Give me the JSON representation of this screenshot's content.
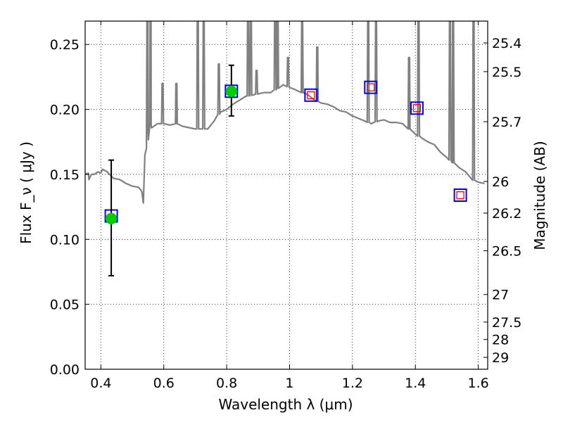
{
  "chart_data": {
    "type": "line",
    "xlabel": "Wavelength  λ (μm)",
    "ylabel": "Flux  F_ν  ( μJy )",
    "y2label": "Magnitude (AB)",
    "xlim": [
      0.35,
      1.63
    ],
    "ylim": [
      0.0,
      0.268
    ],
    "grid": true,
    "x_ticks": [
      0.4,
      0.6,
      0.8,
      1.0,
      1.2,
      1.4,
      1.6
    ],
    "x_tick_labels": [
      "0.4",
      "0.6",
      "0.8",
      "1",
      "1.2",
      "1.4",
      "1.6"
    ],
    "y_ticks": [
      0.0,
      0.05,
      0.1,
      0.15,
      0.2,
      0.25
    ],
    "y_tick_labels": [
      "0.00",
      "0.05",
      "0.10",
      "0.15",
      "0.20",
      "0.25"
    ],
    "mag_ticks": [
      25.4,
      25.5,
      25.7,
      26,
      26.2,
      26.5,
      27,
      27.5,
      28,
      29
    ],
    "mag_tick_labels": [
      "25.4",
      "25.5",
      "25.7",
      "26",
      "26.2",
      "26.5",
      "27",
      "27.5",
      "28",
      "29"
    ],
    "colors": {
      "sed": "#808080",
      "observed": "#00cc00",
      "model_outer": "#0000ff",
      "model_inner": "#ff0000",
      "errorbar": "#000000"
    },
    "series": [
      {
        "kind": "sed-line",
        "x": [
          0.35,
          0.36,
          0.362,
          0.37,
          0.38,
          0.39,
          0.4,
          0.405,
          0.42,
          0.44,
          0.46,
          0.48,
          0.5,
          0.52,
          0.53,
          0.535,
          0.54,
          0.545,
          0.55,
          0.56,
          0.58,
          0.6,
          0.62,
          0.64,
          0.66,
          0.68,
          0.7,
          0.72,
          0.74,
          0.76,
          0.78,
          0.8,
          0.82,
          0.84,
          0.86,
          0.88,
          0.9,
          0.92,
          0.94,
          0.96,
          0.98,
          1.0,
          1.02,
          1.04,
          1.06,
          1.08,
          1.1,
          1.12,
          1.14,
          1.16,
          1.18,
          1.2,
          1.22,
          1.24,
          1.26,
          1.28,
          1.3,
          1.32,
          1.34,
          1.36,
          1.38,
          1.4,
          1.42,
          1.44,
          1.46,
          1.48,
          1.5,
          1.52,
          1.54,
          1.56,
          1.58,
          1.6,
          1.62
        ],
        "y": [
          0.15,
          0.151,
          0.146,
          0.15,
          0.15,
          0.152,
          0.151,
          0.154,
          0.152,
          0.147,
          0.146,
          0.143,
          0.141,
          0.14,
          0.137,
          0.128,
          0.165,
          0.17,
          0.181,
          0.187,
          0.189,
          0.189,
          0.188,
          0.189,
          0.187,
          0.186,
          0.185,
          0.185,
          0.185,
          0.191,
          0.198,
          0.2,
          0.204,
          0.207,
          0.21,
          0.211,
          0.212,
          0.213,
          0.213,
          0.216,
          0.219,
          0.217,
          0.215,
          0.213,
          0.211,
          0.207,
          0.205,
          0.204,
          0.202,
          0.199,
          0.198,
          0.195,
          0.193,
          0.191,
          0.189,
          0.191,
          0.192,
          0.19,
          0.19,
          0.189,
          0.185,
          0.181,
          0.178,
          0.175,
          0.173,
          0.167,
          0.163,
          0.159,
          0.155,
          0.152,
          0.146,
          0.144,
          0.143
        ]
      },
      {
        "kind": "emission-lines",
        "lines": [
          {
            "x": 0.548,
            "peak": 0.268
          },
          {
            "x": 0.558,
            "peak": 0.268
          },
          {
            "x": 0.596,
            "peak": 0.22
          },
          {
            "x": 0.64,
            "peak": 0.22
          },
          {
            "x": 0.708,
            "peak": 0.268
          },
          {
            "x": 0.727,
            "peak": 0.268
          },
          {
            "x": 0.775,
            "peak": 0.235
          },
          {
            "x": 0.868,
            "peak": 0.268
          },
          {
            "x": 0.877,
            "peak": 0.268
          },
          {
            "x": 0.895,
            "peak": 0.23
          },
          {
            "x": 0.954,
            "peak": 0.268
          },
          {
            "x": 0.962,
            "peak": 0.268
          },
          {
            "x": 0.995,
            "peak": 0.24
          },
          {
            "x": 1.04,
            "peak": 0.268
          },
          {
            "x": 1.088,
            "peak": 0.248
          },
          {
            "x": 1.25,
            "peak": 0.268
          },
          {
            "x": 1.275,
            "peak": 0.268
          },
          {
            "x": 1.38,
            "peak": 0.24
          },
          {
            "x": 1.41,
            "peak": 0.268
          },
          {
            "x": 1.51,
            "peak": 0.268
          },
          {
            "x": 1.52,
            "peak": 0.268
          },
          {
            "x": 1.585,
            "peak": 0.268
          }
        ]
      },
      {
        "kind": "observed",
        "x": [
          0.433,
          0.815
        ],
        "y": [
          0.116,
          0.214
        ],
        "yerr_low": [
          0.072,
          0.195
        ],
        "yerr_high": [
          0.161,
          0.234
        ]
      },
      {
        "kind": "model-photometry",
        "x": [
          0.433,
          0.815,
          1.068,
          1.258,
          1.405,
          1.543
        ],
        "y": [
          0.118,
          0.214,
          0.211,
          0.217,
          0.201,
          0.134
        ],
        "inner": [
          false,
          false,
          true,
          true,
          true,
          true
        ]
      }
    ]
  }
}
